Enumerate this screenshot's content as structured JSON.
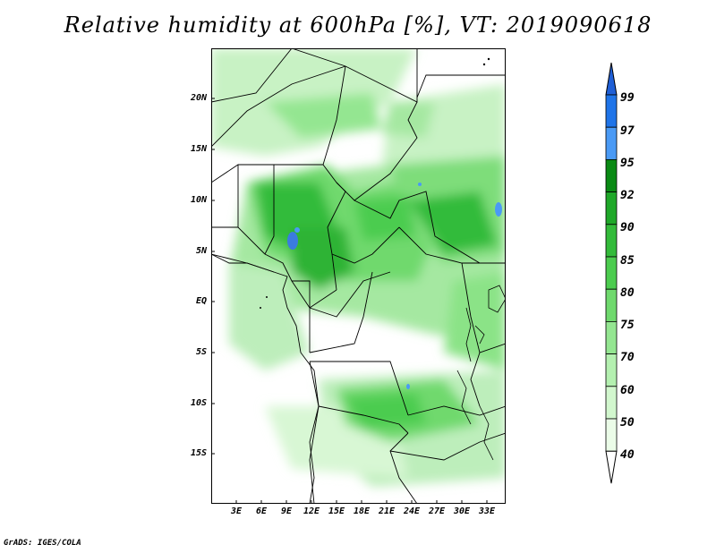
{
  "title": "Relative humidity at 600hPa [%], VT: 2019090618",
  "credit": "GrADS: IGES/COLA",
  "latitude_labels": [
    "20N",
    "15N",
    "10N",
    "5N",
    "EQ",
    "5S",
    "10S",
    "15S"
  ],
  "longitude_labels": [
    "3E",
    "6E",
    "9E",
    "12E",
    "15E",
    "18E",
    "21E",
    "24E",
    "27E",
    "30E",
    "33E"
  ],
  "colorbar": {
    "levels": [
      "99",
      "97",
      "95",
      "92",
      "90",
      "85",
      "80",
      "75",
      "70",
      "60",
      "50",
      "40"
    ],
    "colors": [
      "#1f5fd6",
      "#1f74e8",
      "#4a9af5",
      "#0a8a14",
      "#1fa829",
      "#33bb3a",
      "#4ccc4f",
      "#6fd96d",
      "#94e691",
      "#b4f0b0",
      "#d2f7ce",
      "#ebfce8"
    ]
  }
}
